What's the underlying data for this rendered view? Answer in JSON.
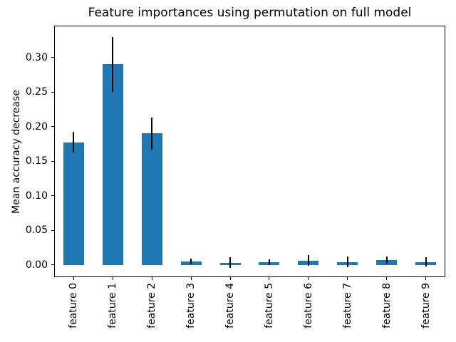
{
  "chart_data": {
    "type": "bar",
    "title": "Feature importances using permutation on full model",
    "ylabel": "Mean accuracy decrease",
    "categories": [
      "feature 0",
      "feature 1",
      "feature 2",
      "feature 3",
      "feature 4",
      "feature 5",
      "feature 6",
      "feature 7",
      "feature 8",
      "feature 9"
    ],
    "values": [
      0.177,
      0.29,
      0.19,
      0.005,
      0.003,
      0.004,
      0.006,
      0.004,
      0.007,
      0.004
    ],
    "errors": [
      0.015,
      0.04,
      0.023,
      0.004,
      0.008,
      0.004,
      0.008,
      0.008,
      0.005,
      0.007
    ],
    "yticks": [
      0.0,
      0.05,
      0.1,
      0.15,
      0.2,
      0.25,
      0.3
    ],
    "ytick_labels": [
      "0.00",
      "0.05",
      "0.10",
      "0.15",
      "0.20",
      "0.25",
      "0.30"
    ],
    "ylim": [
      -0.018,
      0.346
    ],
    "bar_color": "#1f77b4",
    "error_color": "#000000",
    "grid": false,
    "legend": "none",
    "xtick_rotation": 90
  }
}
